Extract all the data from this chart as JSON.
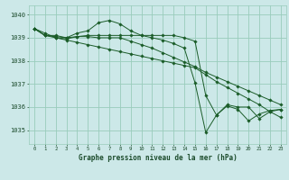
{
  "background_color": "#cce8e8",
  "grid_color": "#99ccbb",
  "line_color": "#1a5c28",
  "marker_color": "#1a5c28",
  "xlabel": "Graphe pression niveau de la mer (hPa)",
  "xlim": [
    -0.5,
    23.5
  ],
  "ylim": [
    1034.4,
    1040.4
  ],
  "yticks": [
    1035,
    1036,
    1037,
    1038,
    1039,
    1040
  ],
  "xticks": [
    0,
    1,
    2,
    3,
    4,
    5,
    6,
    7,
    8,
    9,
    10,
    11,
    12,
    13,
    14,
    15,
    16,
    17,
    18,
    19,
    20,
    21,
    22,
    23
  ],
  "series": [
    [
      1039.4,
      1039.1,
      1039.1,
      1039.0,
      1039.2,
      1039.3,
      1039.65,
      1039.75,
      1039.6,
      1039.3,
      1039.1,
      1039.1,
      1039.1,
      1039.1,
      1039.0,
      1038.85,
      1036.5,
      1035.65,
      1036.1,
      1036.0,
      1036.0,
      1035.5,
      1035.8,
      1035.9
    ],
    [
      1039.4,
      1039.1,
      1039.05,
      1039.0,
      1039.05,
      1039.05,
      1039.0,
      1039.0,
      1039.0,
      1038.85,
      1038.7,
      1038.55,
      1038.35,
      1038.15,
      1037.95,
      1037.75,
      1037.5,
      1037.3,
      1037.1,
      1036.9,
      1036.7,
      1036.5,
      1036.3,
      1036.1
    ],
    [
      1039.4,
      1039.2,
      1039.0,
      1038.9,
      1038.8,
      1038.7,
      1038.6,
      1038.5,
      1038.4,
      1038.3,
      1038.2,
      1038.1,
      1038.0,
      1037.9,
      1037.8,
      1037.7,
      1037.4,
      1037.1,
      1036.85,
      1036.6,
      1036.35,
      1036.1,
      1035.8,
      1035.55
    ],
    [
      1039.4,
      1039.1,
      1039.0,
      1038.95,
      1039.05,
      1039.1,
      1039.1,
      1039.1,
      1039.1,
      1039.1,
      1039.1,
      1039.0,
      1038.9,
      1038.75,
      1038.55,
      1037.05,
      1034.9,
      1035.65,
      1036.05,
      1035.9,
      1035.4,
      1035.7,
      1035.85,
      1035.9
    ]
  ]
}
